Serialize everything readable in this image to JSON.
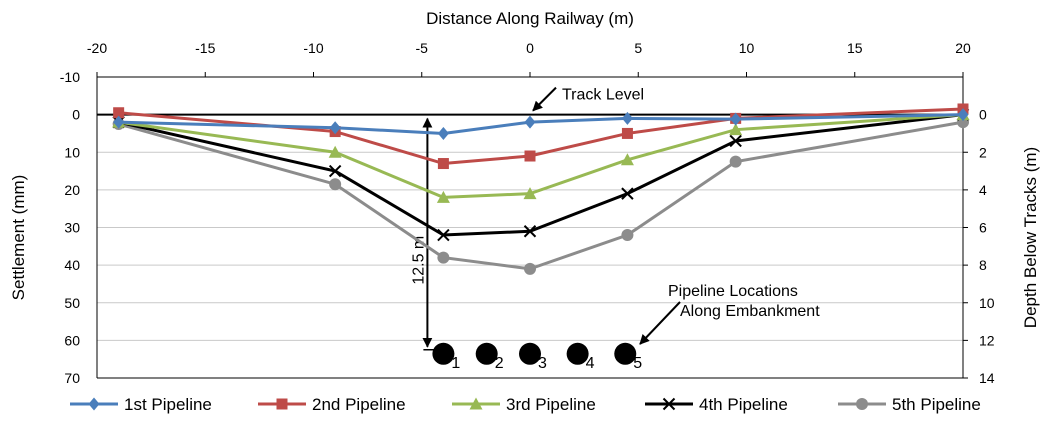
{
  "chart_data": {
    "type": "line",
    "title": "",
    "x_axis": {
      "label": "Distance Along Railway (m)",
      "range": [
        -20,
        20
      ],
      "ticks": [
        "-20",
        "-15",
        "-10",
        "-5",
        "0",
        "5",
        "10",
        "15",
        "20"
      ],
      "position": "top"
    },
    "y_axis_left": {
      "label": "Settlement (mm)",
      "range": [
        -10,
        70
      ],
      "inverted": true,
      "ticks": [
        "-10",
        "0",
        "10",
        "20",
        "30",
        "40",
        "50",
        "60",
        "70"
      ]
    },
    "y_axis_right": {
      "label": "Depth Below Tracks (m)",
      "range": [
        0,
        14
      ],
      "inverted": true,
      "ticks": [
        "0",
        "2",
        "4",
        "6",
        "8",
        "10",
        "12",
        "14"
      ]
    },
    "grid": "horizontal",
    "legend_position": "bottom",
    "series": [
      {
        "name": "1st Pipeline",
        "color": "#4a7ebb",
        "marker": "diamond",
        "x": [
          -19,
          -9,
          -4,
          0,
          4.5,
          9.5,
          20
        ],
        "y": [
          2,
          3.5,
          5,
          2,
          1,
          1.2,
          0
        ]
      },
      {
        "name": "2nd Pipeline",
        "color": "#be4b48",
        "marker": "square",
        "x": [
          -19,
          -9,
          -4,
          0,
          4.5,
          9.5,
          20
        ],
        "y": [
          -0.5,
          4.5,
          13,
          11,
          5,
          1,
          -1.5
        ]
      },
      {
        "name": "3rd Pipeline",
        "color": "#98b954",
        "marker": "triangle",
        "x": [
          -19,
          -9,
          -4,
          0,
          4.5,
          9.5,
          20
        ],
        "y": [
          2,
          10,
          22,
          21,
          12,
          4,
          0
        ]
      },
      {
        "name": "4th Pipeline",
        "color": "#000000",
        "marker": "x",
        "x": [
          -19,
          -9,
          -4,
          0,
          4.5,
          9.5,
          20
        ],
        "y": [
          2,
          15,
          32,
          31,
          21,
          7,
          0
        ]
      },
      {
        "name": "5th Pipeline",
        "color": "#8c8c8c",
        "marker": "circle",
        "x": [
          -19,
          -9,
          -4,
          0,
          4.5,
          9.5,
          20
        ],
        "y": [
          2.5,
          18.5,
          38,
          41,
          32,
          12.5,
          2
        ]
      }
    ],
    "annotations": {
      "track_level": "Track Level",
      "depth_dimension": "12.5 m",
      "pipeline_locations_line1": "Pipeline Locations",
      "pipeline_locations_line2": "Along Embankment"
    },
    "pipelines": [
      {
        "label": "1",
        "x": -4,
        "depth_m": 12.5
      },
      {
        "label": "2",
        "x": -2,
        "depth_m": 12.5
      },
      {
        "label": "3",
        "x": 0,
        "depth_m": 12.5
      },
      {
        "label": "4",
        "x": 2.2,
        "depth_m": 12.5
      },
      {
        "label": "5",
        "x": 4.4,
        "depth_m": 12.5
      }
    ]
  }
}
